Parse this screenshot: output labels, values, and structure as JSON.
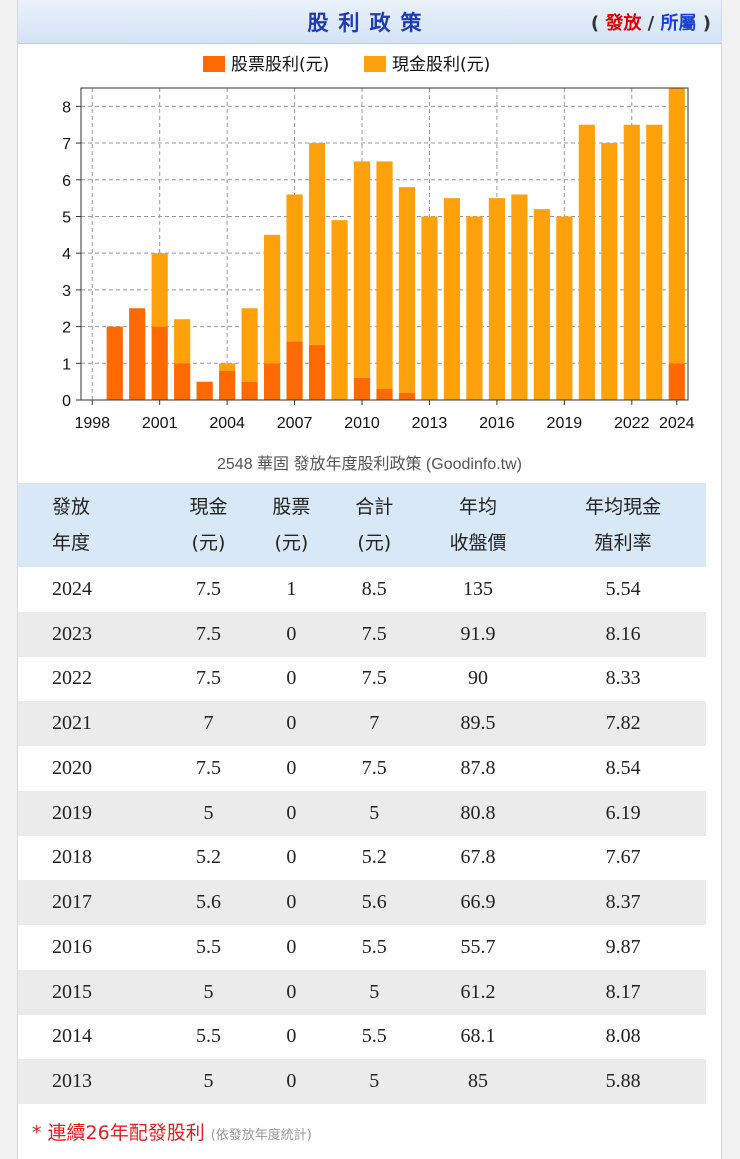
{
  "header": {
    "title": "股利政策",
    "link_open": "(",
    "link_issue": "發放",
    "link_sep": "/",
    "link_belong": "所屬",
    "link_close": ")"
  },
  "caption": "2548 華固 發放年度股利政策 (Goodinfo.tw)",
  "chart_data": {
    "type": "bar",
    "stacked": true,
    "title": "股利政策",
    "legend": [
      "股票股利(元)",
      "現金股利(元)"
    ],
    "x": [
      1998,
      1999,
      2000,
      2001,
      2002,
      2003,
      2004,
      2005,
      2006,
      2007,
      2008,
      2009,
      2010,
      2011,
      2012,
      2013,
      2014,
      2015,
      2016,
      2017,
      2018,
      2019,
      2020,
      2021,
      2022,
      2023,
      2024
    ],
    "xticks": [
      "1998",
      "2001",
      "2004",
      "2007",
      "2010",
      "2013",
      "2016",
      "2019",
      "2022",
      "2024"
    ],
    "yticks": [
      "0",
      "1",
      "2",
      "3",
      "4",
      "5",
      "6",
      "7",
      "8"
    ],
    "ylim": [
      0,
      8.5
    ],
    "series": [
      {
        "name": "股票股利(元)",
        "color": "#ff6a00",
        "values": [
          0,
          2,
          2.5,
          2,
          1,
          0.5,
          0.8,
          0.5,
          1,
          1.6,
          1.5,
          0,
          0.6,
          0.3,
          0.2,
          0,
          0,
          0,
          0,
          0,
          0,
          0,
          0,
          0,
          0,
          0,
          1
        ]
      },
      {
        "name": "現金股利(元)",
        "color": "#ffa10a",
        "values": [
          0,
          0,
          0,
          2,
          1.2,
          0,
          0.2,
          2,
          3.5,
          4,
          5.5,
          4.9,
          5.9,
          6.2,
          5.6,
          5,
          5.5,
          5,
          5.5,
          5.6,
          5.2,
          5,
          7.5,
          7,
          7.5,
          7.5,
          7.5
        ]
      }
    ],
    "grid": true,
    "xlabel": "",
    "ylabel": ""
  },
  "table": {
    "headers": [
      [
        "發放",
        "年度"
      ],
      [
        "現金",
        "(元)"
      ],
      [
        "股票",
        "(元)"
      ],
      [
        "合計",
        "(元)"
      ],
      [
        "年均",
        "收盤價"
      ],
      [
        "年均現金",
        "殖利率"
      ]
    ],
    "rows": [
      [
        "2024",
        "7.5",
        "1",
        "8.5",
        "135",
        "5.54"
      ],
      [
        "2023",
        "7.5",
        "0",
        "7.5",
        "91.9",
        "8.16"
      ],
      [
        "2022",
        "7.5",
        "0",
        "7.5",
        "90",
        "8.33"
      ],
      [
        "2021",
        "7",
        "0",
        "7",
        "89.5",
        "7.82"
      ],
      [
        "2020",
        "7.5",
        "0",
        "7.5",
        "87.8",
        "8.54"
      ],
      [
        "2019",
        "5",
        "0",
        "5",
        "80.8",
        "6.19"
      ],
      [
        "2018",
        "5.2",
        "0",
        "5.2",
        "67.8",
        "7.67"
      ],
      [
        "2017",
        "5.6",
        "0",
        "5.6",
        "66.9",
        "8.37"
      ],
      [
        "2016",
        "5.5",
        "0",
        "5.5",
        "55.7",
        "9.87"
      ],
      [
        "2015",
        "5",
        "0",
        "5",
        "61.2",
        "8.17"
      ],
      [
        "2014",
        "5.5",
        "0",
        "5.5",
        "68.1",
        "8.08"
      ],
      [
        "2013",
        "5",
        "0",
        "5",
        "85",
        "5.88"
      ]
    ]
  },
  "footnote": {
    "main": "* 連續26年配發股利",
    "sub": "(依發放年度統計)"
  }
}
